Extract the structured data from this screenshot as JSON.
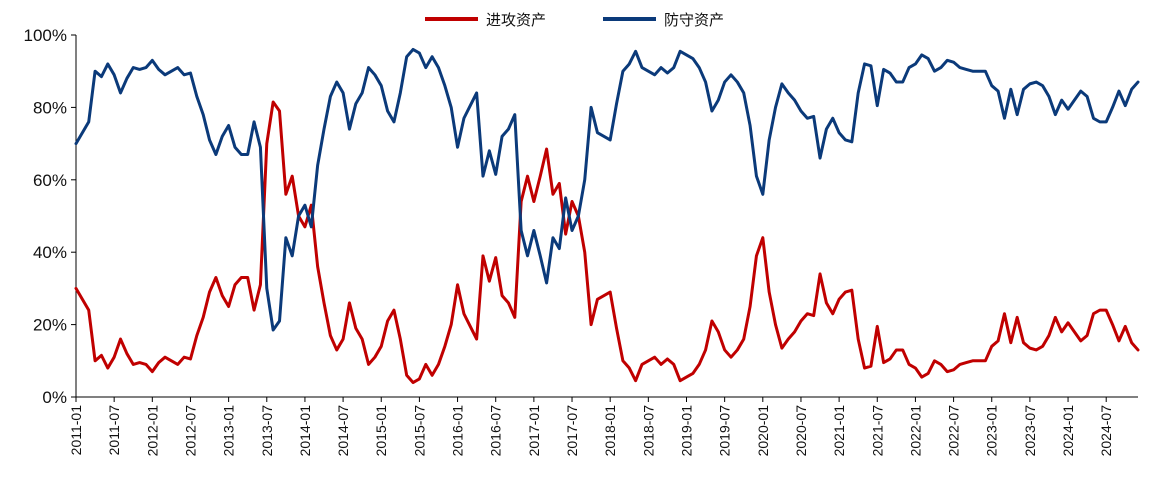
{
  "chart_data": {
    "type": "line",
    "title": "",
    "xlabel": "",
    "ylabel": "",
    "ylim": [
      0,
      100
    ],
    "y_ticks": [
      "0%",
      "20%",
      "40%",
      "60%",
      "80%",
      "100%"
    ],
    "x_tick_labels": [
      "2011-01",
      "2011-07",
      "2012-01",
      "2012-07",
      "2013-01",
      "2013-07",
      "2014-01",
      "2014-07",
      "2015-01",
      "2015-07",
      "2016-01",
      "2016-07",
      "2017-01",
      "2017-07",
      "2018-01",
      "2018-07",
      "2019-01",
      "2019-07",
      "2020-01",
      "2020-07",
      "2021-01",
      "2021-07",
      "2022-01",
      "2022-07",
      "2023-01",
      "2023-07",
      "2024-01",
      "2024-07"
    ],
    "x_start": "2011-01",
    "grid": false,
    "legend_position": "top-center",
    "colors": {
      "offense": "#C00000",
      "defense": "#0B3A7A"
    },
    "series": [
      {
        "name": "进攻资产",
        "values": [
          30,
          27,
          24,
          10,
          11.5,
          8,
          11,
          16,
          12,
          9,
          9.5,
          9,
          7,
          9.5,
          11,
          10,
          9,
          11,
          10.5,
          17,
          22,
          29,
          33,
          28,
          25,
          31,
          33,
          33,
          24,
          31,
          70,
          81.5,
          79,
          56,
          61,
          50,
          47,
          53,
          36,
          26,
          17,
          13,
          16,
          26,
          19,
          16,
          9,
          11,
          14,
          21,
          24,
          16,
          6,
          4,
          5,
          9,
          6,
          9,
          14,
          20,
          31,
          23,
          19.5,
          16,
          39,
          32,
          38.5,
          28,
          26,
          22,
          54,
          61,
          54,
          61,
          68.5,
          56,
          59,
          45,
          54,
          50,
          40,
          20,
          27,
          28,
          29,
          19,
          10,
          8,
          4.5,
          9,
          10,
          11,
          9,
          10.5,
          9,
          4.5,
          5.5,
          6.5,
          9,
          13,
          21,
          18,
          13,
          11,
          13,
          16,
          25,
          39,
          44,
          29,
          20,
          13.5,
          16,
          18,
          21,
          23,
          22.5,
          34,
          26,
          23,
          27,
          29,
          29.5,
          16,
          8,
          8.5,
          19.5,
          9.5,
          10.5,
          13,
          13,
          9,
          8,
          5.5,
          6.5,
          10,
          9,
          7,
          7.5,
          9,
          9.5,
          10,
          10,
          10,
          14,
          15.5,
          23,
          15,
          22,
          15,
          13.5,
          13,
          14,
          17,
          22,
          18,
          20.5,
          18,
          15.5,
          17,
          23,
          24,
          24,
          20,
          15.5,
          19.5,
          15,
          13
        ]
      },
      {
        "name": "防守资产",
        "values": [
          70,
          73,
          76,
          90,
          88.5,
          92,
          89,
          84,
          88,
          91,
          90.5,
          91,
          93,
          90.5,
          89,
          90,
          91,
          89,
          89.5,
          83,
          78,
          71,
          67,
          72,
          75,
          69,
          67,
          67,
          76,
          69,
          30,
          18.5,
          21,
          44,
          39,
          50,
          53,
          47,
          64,
          74,
          83,
          87,
          84,
          74,
          81,
          84,
          91,
          89,
          86,
          79,
          76,
          84,
          94,
          96,
          95,
          91,
          94,
          91,
          86,
          80,
          69,
          77,
          80.5,
          84,
          61,
          68,
          61.5,
          72,
          74,
          78,
          46,
          39,
          46,
          39,
          31.5,
          44,
          41,
          55,
          46,
          50,
          60,
          80,
          73,
          72,
          71,
          81,
          90,
          92,
          95.5,
          91,
          90,
          89,
          91,
          89.5,
          91,
          95.5,
          94.5,
          93.5,
          91,
          87,
          79,
          82,
          87,
          89,
          87,
          84,
          75,
          61,
          56,
          71,
          80,
          86.5,
          84,
          82,
          79,
          77,
          77.5,
          66,
          74,
          77,
          73,
          71,
          70.5,
          84,
          92,
          91.5,
          80.5,
          90.5,
          89.5,
          87,
          87,
          91,
          92,
          94.5,
          93.5,
          90,
          91,
          93,
          92.5,
          91,
          90.5,
          90,
          90,
          90,
          86,
          84.5,
          77,
          85,
          78,
          85,
          86.5,
          87,
          86,
          83,
          78,
          82,
          79.5,
          82,
          84.5,
          83,
          77,
          76,
          76,
          80,
          84.5,
          80.5,
          85,
          87
        ]
      }
    ]
  }
}
